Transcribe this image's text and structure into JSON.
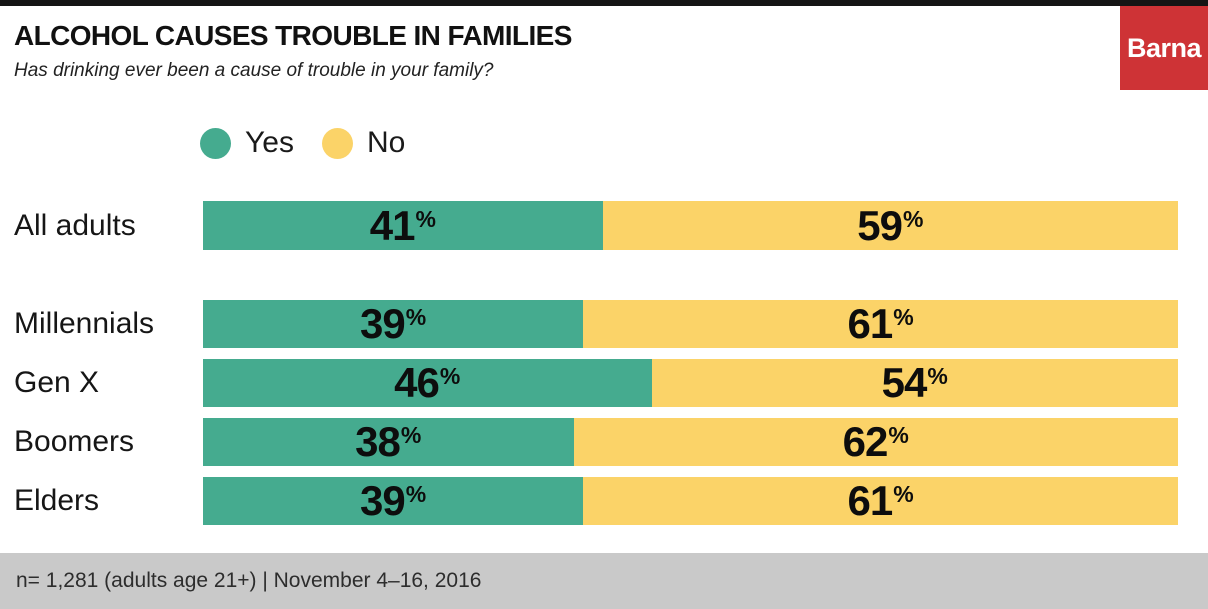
{
  "brand": {
    "logo_text": "Barna"
  },
  "colors": {
    "yes": "#45ab8f",
    "no": "#fbd368",
    "brand_red": "#ce3336",
    "footer_bg": "#c9c9c9",
    "top_bar": "#151515"
  },
  "chart_data": {
    "type": "bar",
    "orientation": "horizontal",
    "stacked": true,
    "title": "ALCOHOL CAUSES TROUBLE IN FAMILIES",
    "subtitle": "Has drinking ever been a cause of trouble in your family?",
    "categories": [
      "All adults",
      "Millennials",
      "Gen X",
      "Boomers",
      "Elders"
    ],
    "series": [
      {
        "name": "Yes",
        "color_key": "yes",
        "values": [
          41,
          39,
          46,
          38,
          39
        ]
      },
      {
        "name": "No",
        "color_key": "no",
        "values": [
          59,
          61,
          54,
          62,
          61
        ]
      }
    ],
    "value_suffix": "%",
    "xlim": [
      0,
      100
    ],
    "legend_position": "top",
    "grid": false
  },
  "footer": {
    "note": "n= 1,281 (adults age 21+) | November 4–16, 2016"
  }
}
